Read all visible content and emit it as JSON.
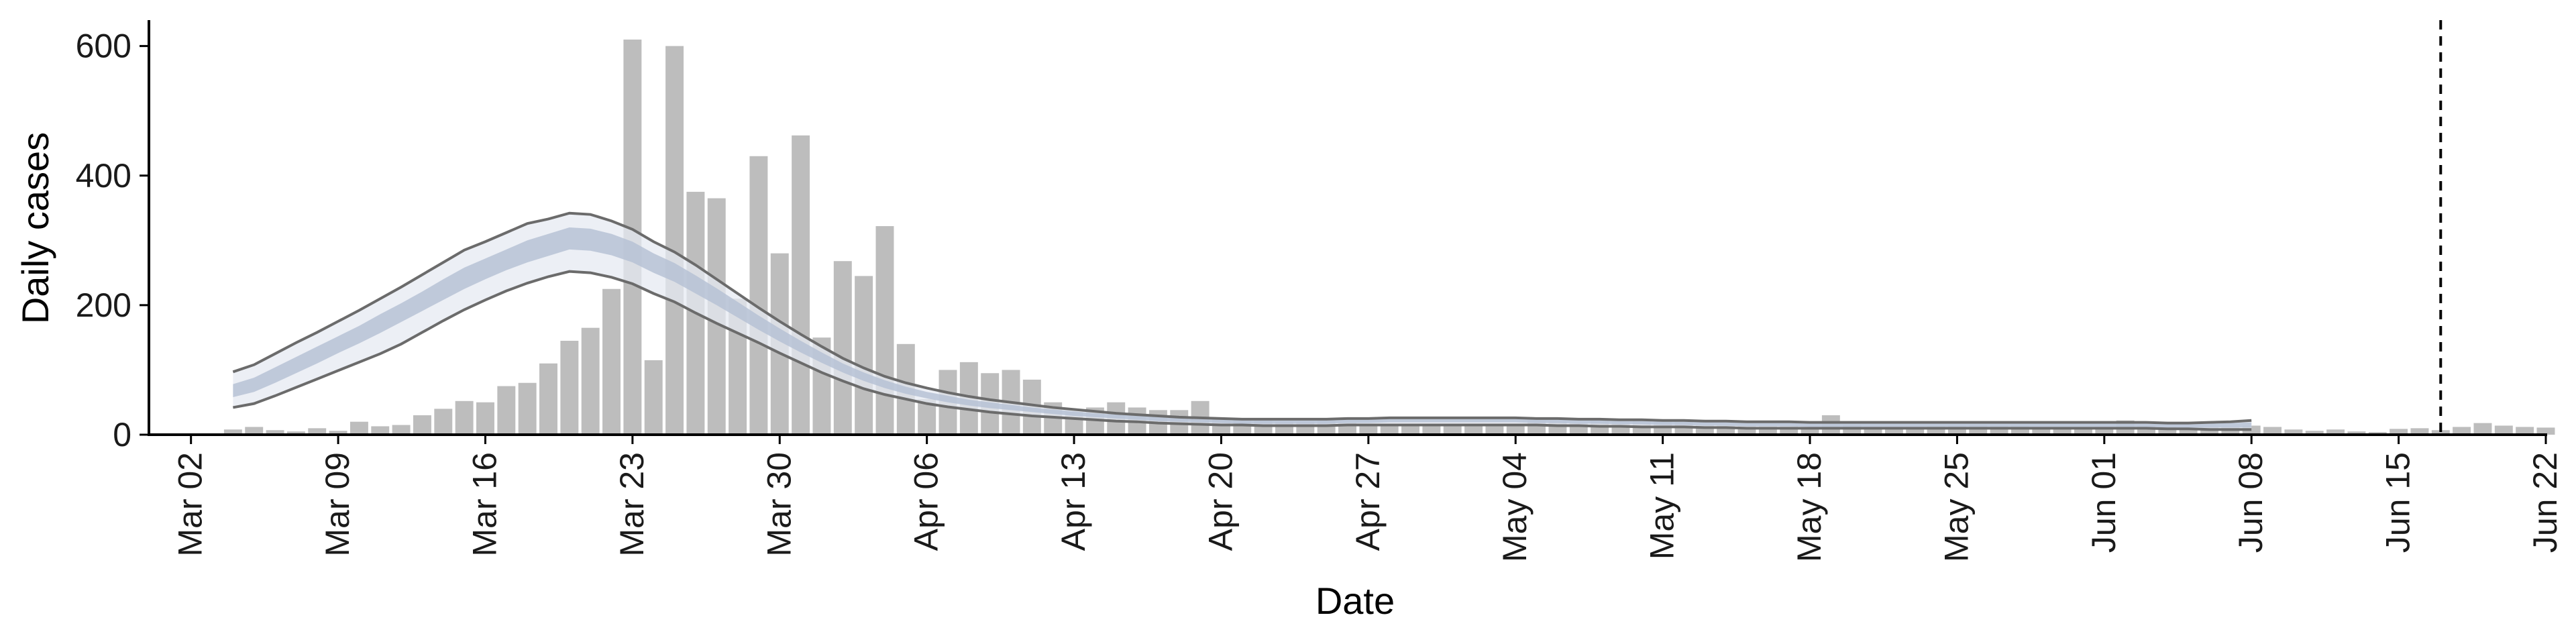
{
  "chart_data": {
    "type": "bar",
    "xlabel": "Date",
    "ylabel": "Daily cases",
    "ylim": [
      0,
      640
    ],
    "y_ticks": [
      0,
      200,
      400,
      600
    ],
    "x_range": [
      "2020-02-29",
      "2020-06-22"
    ],
    "x_ticks": [
      {
        "date": "2020-03-02",
        "label": "Mar 02"
      },
      {
        "date": "2020-03-09",
        "label": "Mar 09"
      },
      {
        "date": "2020-03-16",
        "label": "Mar 16"
      },
      {
        "date": "2020-03-23",
        "label": "Mar 23"
      },
      {
        "date": "2020-03-30",
        "label": "Mar 30"
      },
      {
        "date": "2020-04-06",
        "label": "Apr 06"
      },
      {
        "date": "2020-04-13",
        "label": "Apr 13"
      },
      {
        "date": "2020-04-20",
        "label": "Apr 20"
      },
      {
        "date": "2020-04-27",
        "label": "Apr 27"
      },
      {
        "date": "2020-05-04",
        "label": "May 04"
      },
      {
        "date": "2020-05-11",
        "label": "May 11"
      },
      {
        "date": "2020-05-18",
        "label": "May 18"
      },
      {
        "date": "2020-05-25",
        "label": "May 25"
      },
      {
        "date": "2020-06-01",
        "label": "Jun 01"
      },
      {
        "date": "2020-06-08",
        "label": "Jun 08"
      },
      {
        "date": "2020-06-15",
        "label": "Jun 15"
      },
      {
        "date": "2020-06-22",
        "label": "Jun 22"
      }
    ],
    "grid": false,
    "legend": "none",
    "bars": {
      "name": "Reported daily cases",
      "color": "#bdbdbd",
      "start_date": "2020-03-04",
      "values": [
        8,
        12,
        7,
        5,
        10,
        6,
        20,
        13,
        15,
        30,
        40,
        52,
        50,
        75,
        80,
        110,
        145,
        165,
        225,
        610,
        115,
        600,
        375,
        365,
        210,
        430,
        280,
        462,
        150,
        268,
        245,
        322,
        140,
        55,
        100,
        112,
        95,
        100,
        85,
        50,
        35,
        42,
        50,
        42,
        38,
        38,
        52,
        25,
        22,
        22,
        20,
        20,
        22,
        18,
        16,
        15,
        14,
        14,
        14,
        17,
        14,
        16,
        22,
        20,
        18,
        22,
        20,
        22,
        20,
        20,
        15,
        14,
        14,
        13,
        14,
        12,
        30,
        15,
        12,
        12,
        12,
        13,
        14,
        15,
        14,
        14,
        12,
        10,
        9,
        12,
        22,
        14,
        12,
        10,
        12,
        12,
        14,
        12,
        8,
        6,
        8,
        5,
        4,
        9,
        10,
        7,
        12,
        18,
        14,
        12,
        11
      ]
    },
    "nowcast": {
      "start_date": "2020-03-04",
      "band_color": "#e6e9f2",
      "inner_band_color": "#b4bfd3",
      "line_color": "#6b6b6b",
      "upper": [
        97,
        108,
        125,
        142,
        158,
        175,
        192,
        210,
        228,
        247,
        266,
        285,
        298,
        312,
        326,
        333,
        342,
        340,
        330,
        317,
        298,
        282,
        262,
        240,
        218,
        196,
        175,
        155,
        136,
        118,
        103,
        90,
        80,
        72,
        65,
        59,
        54,
        50,
        46,
        42,
        39,
        36,
        33,
        31,
        29,
        27,
        26,
        25,
        24,
        24,
        24,
        24,
        24,
        25,
        25,
        26,
        26,
        26,
        26,
        26,
        26,
        26,
        25,
        25,
        24,
        24,
        23,
        23,
        22,
        22,
        21,
        21,
        20,
        20,
        20,
        19,
        19,
        19,
        19,
        19,
        19,
        19,
        19,
        19,
        19,
        19,
        19,
        19,
        19,
        19,
        19,
        19,
        18,
        18,
        19,
        20,
        22
      ],
      "inner_high": [
        78,
        88,
        104,
        120,
        136,
        152,
        168,
        186,
        203,
        221,
        240,
        258,
        272,
        286,
        300,
        310,
        320,
        318,
        310,
        298,
        280,
        265,
        246,
        226,
        205,
        184,
        164,
        145,
        127,
        110,
        96,
        84,
        74,
        66,
        60,
        54,
        50,
        46,
        42,
        39,
        36,
        33,
        31,
        29,
        27,
        25,
        24,
        23,
        22,
        22,
        22,
        22,
        22,
        23,
        23,
        24,
        24,
        24,
        24,
        24,
        24,
        24,
        23,
        23,
        22,
        22,
        21,
        21,
        20,
        20,
        19,
        19,
        18,
        18,
        18,
        17,
        17,
        17,
        17,
        17,
        17,
        17,
        17,
        17,
        17,
        17,
        17,
        17,
        17,
        17,
        17,
        17,
        16,
        16,
        17,
        18,
        19
      ],
      "inner_low": [
        58,
        66,
        80,
        95,
        110,
        126,
        141,
        157,
        174,
        191,
        208,
        225,
        240,
        254,
        266,
        276,
        286,
        284,
        277,
        266,
        250,
        236,
        218,
        200,
        181,
        162,
        144,
        127,
        111,
        96,
        83,
        72,
        63,
        56,
        50,
        45,
        41,
        38,
        35,
        32,
        29,
        27,
        25,
        23,
        21,
        20,
        19,
        18,
        17,
        17,
        17,
        17,
        17,
        18,
        18,
        19,
        19,
        19,
        19,
        19,
        19,
        19,
        18,
        18,
        17,
        17,
        16,
        16,
        15,
        15,
        14,
        14,
        13,
        13,
        13,
        12,
        12,
        12,
        12,
        12,
        12,
        12,
        12,
        12,
        12,
        12,
        12,
        12,
        12,
        12,
        12,
        12,
        11,
        11,
        11,
        11,
        11
      ],
      "lower": [
        42,
        48,
        60,
        73,
        86,
        99,
        112,
        125,
        140,
        158,
        176,
        193,
        208,
        222,
        234,
        244,
        252,
        250,
        243,
        233,
        218,
        205,
        188,
        172,
        157,
        142,
        126,
        111,
        96,
        83,
        71,
        62,
        55,
        48,
        43,
        39,
        35,
        32,
        29,
        27,
        25,
        23,
        21,
        20,
        18,
        17,
        16,
        15,
        15,
        14,
        14,
        14,
        14,
        15,
        15,
        15,
        15,
        15,
        15,
        15,
        15,
        15,
        15,
        14,
        14,
        13,
        13,
        12,
        12,
        12,
        11,
        11,
        10,
        10,
        10,
        10,
        10,
        10,
        10,
        10,
        10,
        10,
        10,
        10,
        10,
        10,
        10,
        10,
        10,
        10,
        10,
        10,
        9,
        9,
        8,
        8,
        8
      ]
    },
    "reference_line": {
      "date": "2020-06-17",
      "style": "dashed",
      "color": "#000000"
    }
  }
}
